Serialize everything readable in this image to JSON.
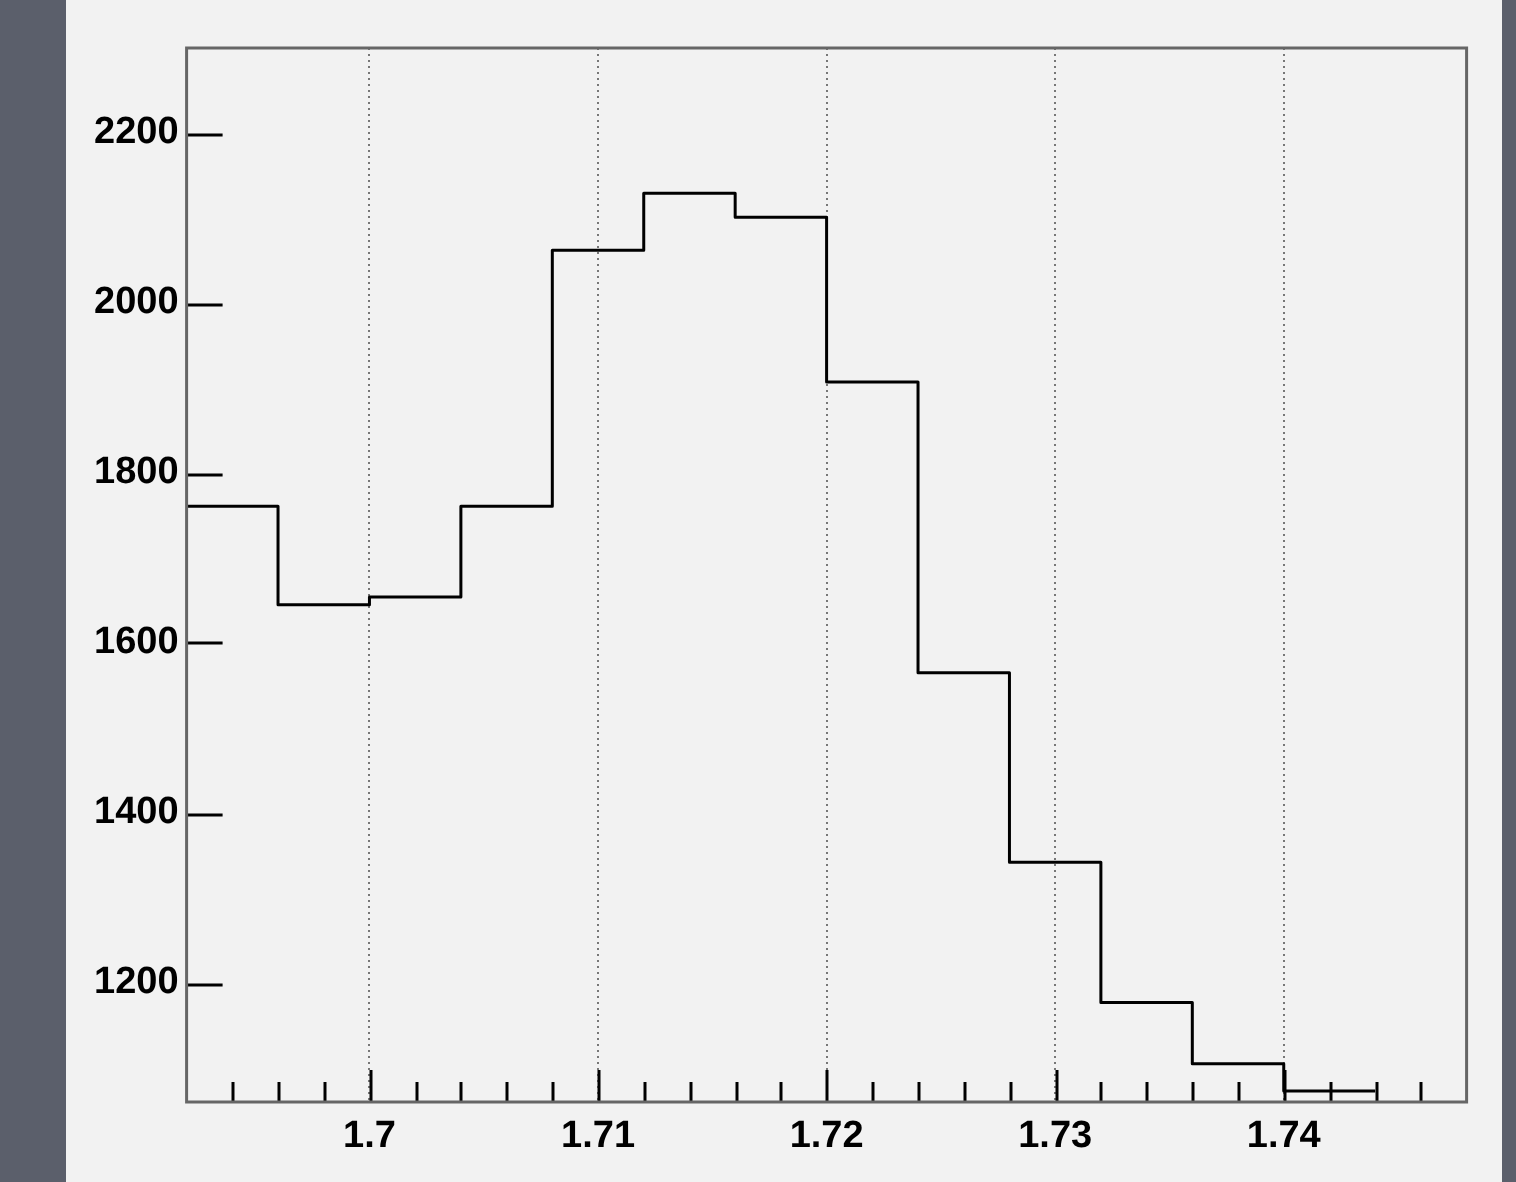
{
  "chart_data": {
    "type": "histogram",
    "color": "#000000",
    "bins": [
      1.692,
      1.696,
      1.7,
      1.704,
      1.708,
      1.712,
      1.716,
      1.72,
      1.724,
      1.728,
      1.732,
      1.736,
      1.74,
      1.744
    ],
    "values": [
      1761,
      1645,
      1654,
      1761,
      2062,
      2129,
      2101,
      1907,
      1565,
      1342,
      1177,
      1105,
      1073
    ],
    "xlim": [
      1.692,
      1.748
    ],
    "xticks": [
      {
        "value": 1.694,
        "label": null
      },
      {
        "value": 1.696,
        "label": null
      },
      {
        "value": 1.698,
        "label": null
      },
      1.7,
      {
        "value": 1.702,
        "label": null
      },
      {
        "value": 1.704,
        "label": null
      },
      {
        "value": 1.706,
        "label": null
      },
      {
        "value": 1.708,
        "label": null
      },
      1.71,
      {
        "value": 1.712,
        "label": null
      },
      {
        "value": 1.714,
        "label": null
      },
      {
        "value": 1.716,
        "label": null
      },
      {
        "value": 1.718,
        "label": null
      },
      1.72,
      {
        "value": 1.722,
        "label": null
      },
      {
        "value": 1.724,
        "label": null
      },
      {
        "value": 1.726,
        "label": null
      },
      {
        "value": 1.728,
        "label": null
      },
      1.73,
      {
        "value": 1.732,
        "label": null
      },
      {
        "value": 1.734,
        "label": null
      },
      {
        "value": 1.736,
        "label": null
      },
      {
        "value": 1.738,
        "label": null
      },
      1.74,
      {
        "value": 1.742,
        "label": null
      },
      {
        "value": 1.744,
        "label": null
      },
      {
        "value": 1.746,
        "label": null
      }
    ],
    "ylim": [
      1060,
      2300
    ],
    "yticks": [
      1200,
      1400,
      1600,
      1800,
      2000,
      2200
    ],
    "grid": "x"
  }
}
